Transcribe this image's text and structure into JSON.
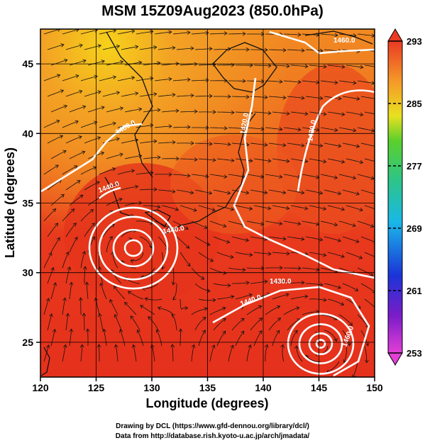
{
  "title": "MSM 15Z09Aug2023 (850.0hPa)",
  "x_axis": {
    "label": "Longitude (degrees)",
    "ticks": [
      "120",
      "125",
      "130",
      "135",
      "140",
      "145",
      "150"
    ]
  },
  "y_axis": {
    "label": "Latitude  (degrees)",
    "ticks": [
      "25",
      "30",
      "35",
      "40",
      "45"
    ]
  },
  "colorbar": {
    "ticks": [
      "293",
      "285",
      "277",
      "269",
      "261",
      "253"
    ]
  },
  "contour_labels": [
    "1460.0",
    "1440.0",
    "1440.0",
    "1420.0",
    "1420.0",
    "1440.0",
    "1460.0",
    "1430.0",
    "1460.0"
  ],
  "footer": {
    "line1": "Drawing by DCL (https://www.gfd-dennou.org/library/dcl/)",
    "line2": "Data from http://database.rish.kyoto-u.ac.jp/arch/jmadata/"
  },
  "colors": {
    "warm": "#e8361e",
    "cool": "#f47b20",
    "contour": "#ffffff"
  }
}
